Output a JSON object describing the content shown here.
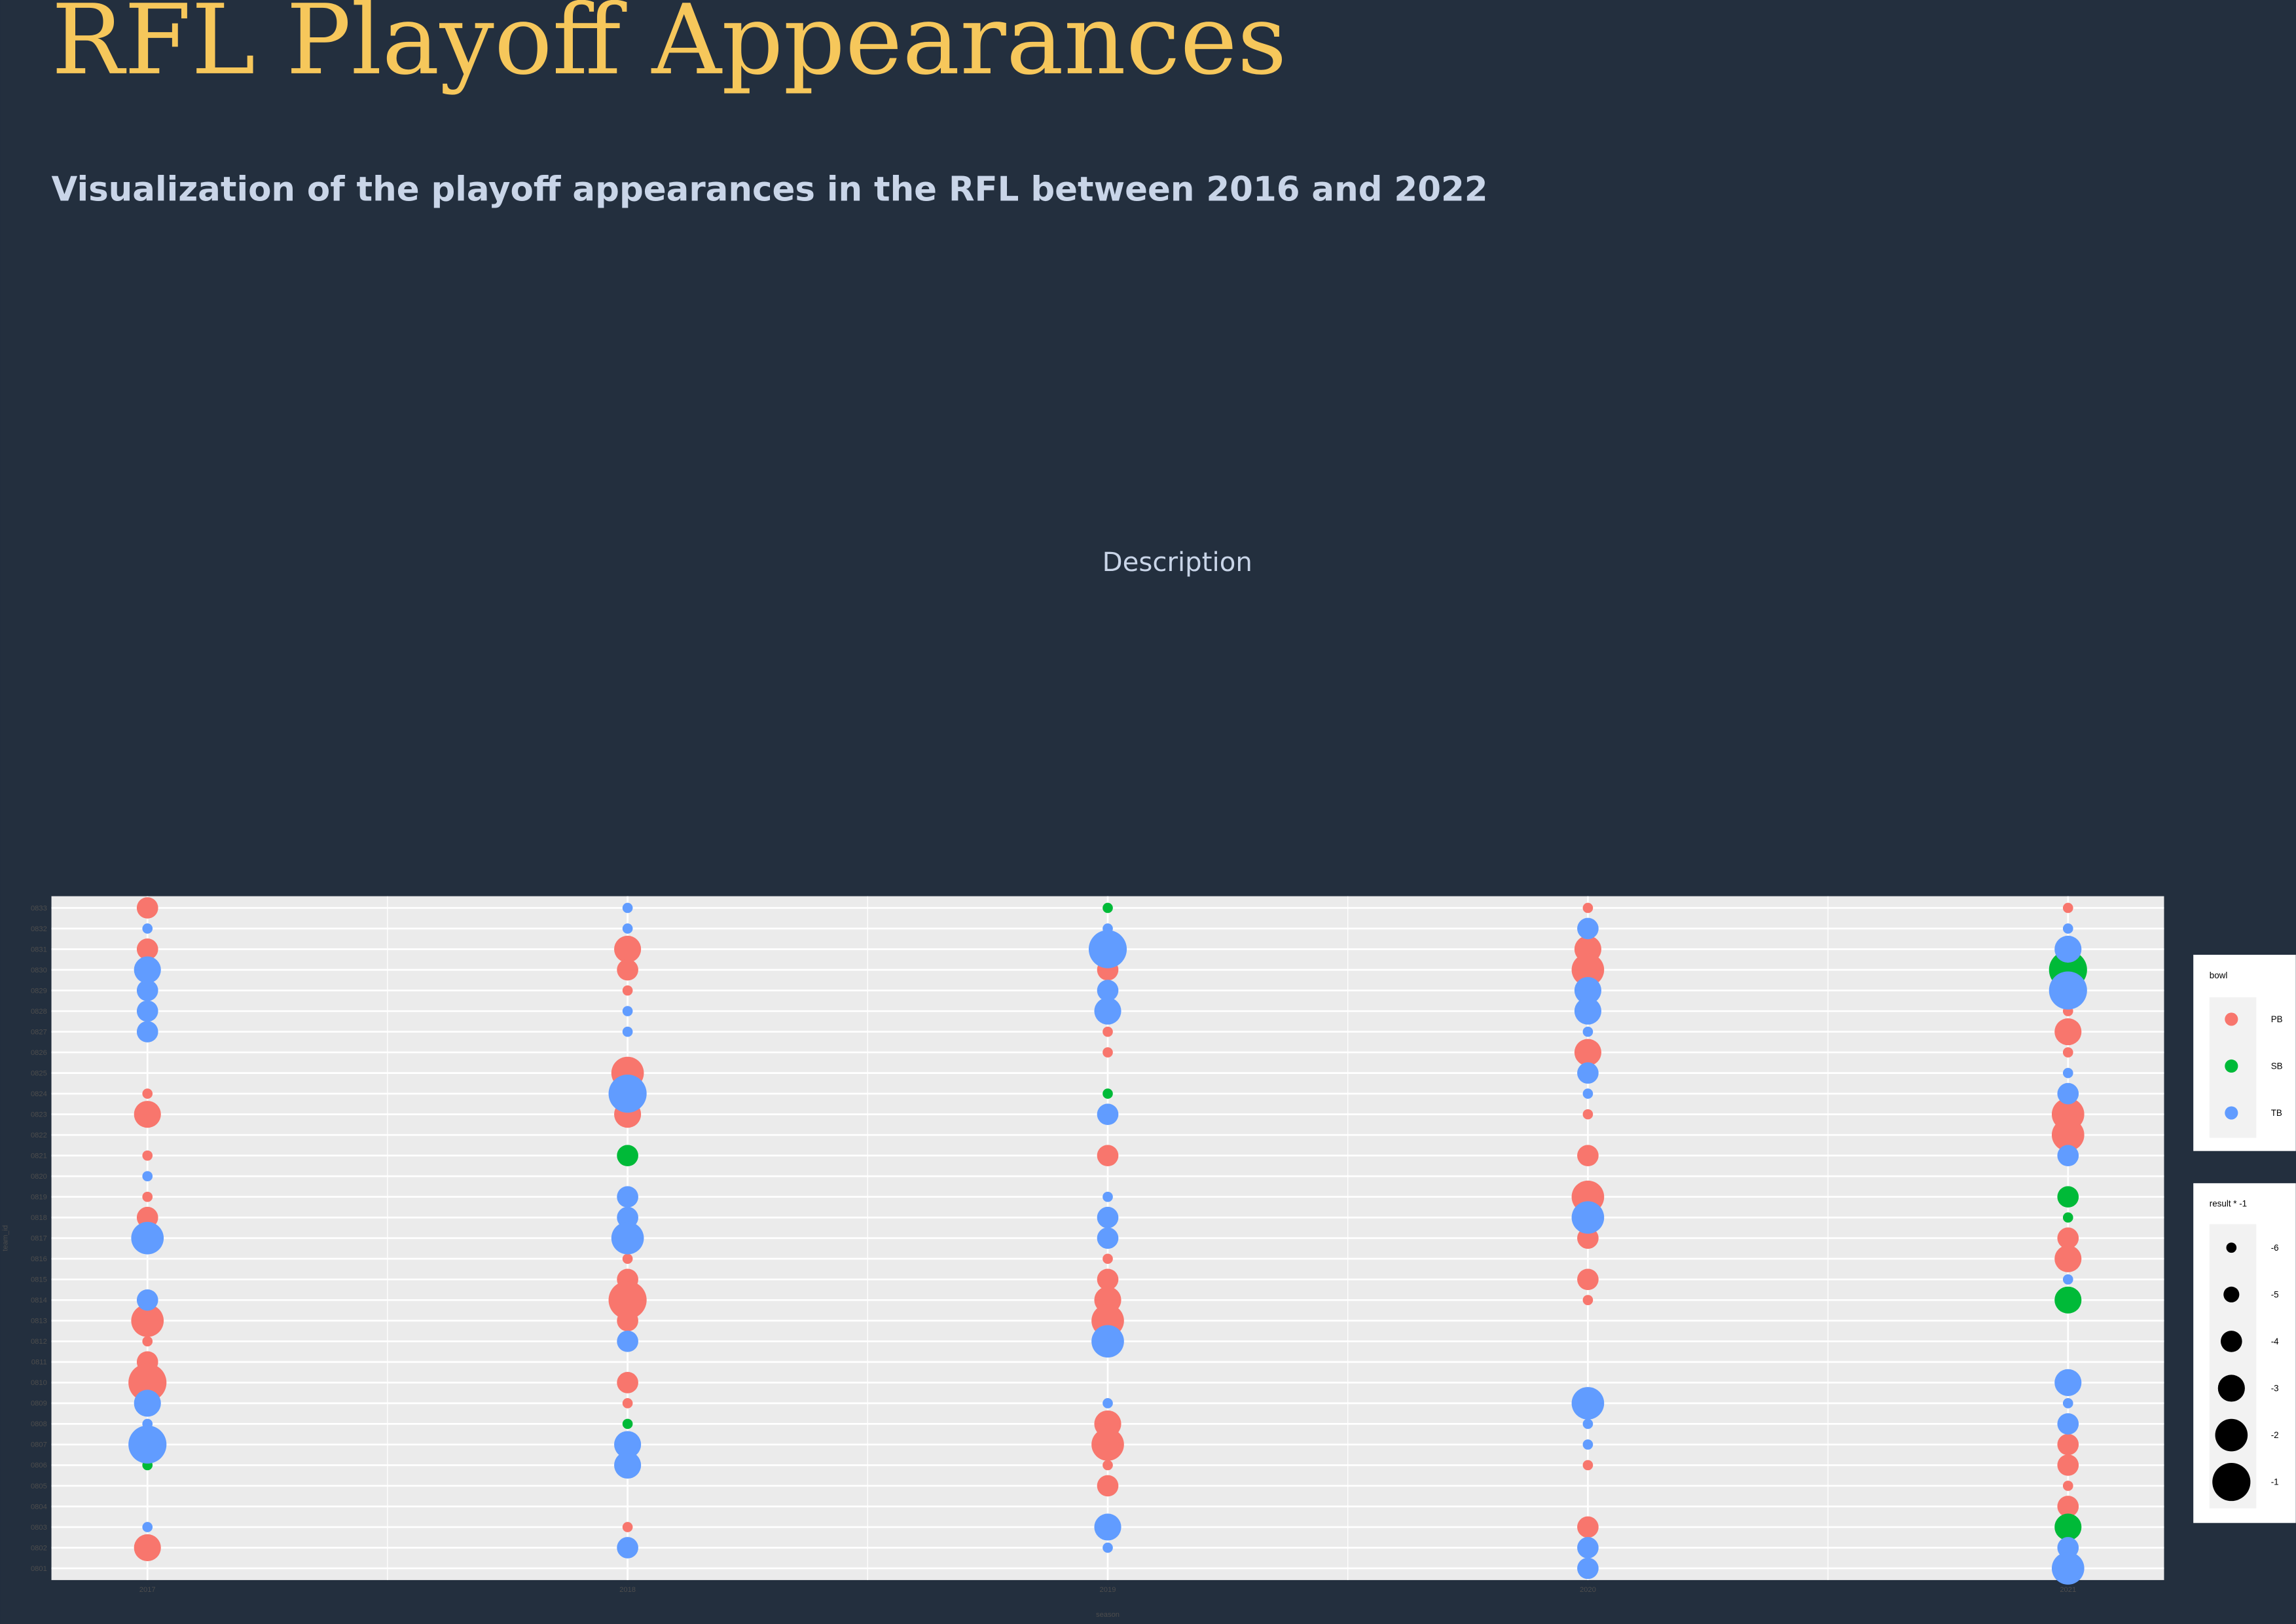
{
  "header": {
    "title": "RFL Playoff Appearances",
    "subtitle": "Visualization of the playoff appearances in the RFL between 2016 and 2022",
    "description": "Description"
  },
  "chart_data": {
    "type": "scatter",
    "x_label": "season",
    "y_label": "team_id",
    "xlim": [
      2016.8,
      2021.2
    ],
    "xticks": [
      2017,
      2018,
      2019,
      2020,
      2021
    ],
    "y_categories": [
      "0801",
      "0802",
      "0803",
      "0804",
      "0805",
      "0806",
      "0807",
      "0808",
      "0809",
      "0810",
      "0811",
      "0812",
      "0813",
      "0814",
      "0815",
      "0816",
      "0817",
      "0818",
      "0819",
      "0820",
      "0821",
      "0822",
      "0823",
      "0824",
      "0825",
      "0826",
      "0827",
      "0828",
      "0829",
      "0830",
      "0831",
      "0832",
      "0833"
    ],
    "grid": true,
    "legend_title": "bowl",
    "size_legend": {
      "title": "result * -1",
      "values": [
        -6,
        -5,
        -4,
        -3,
        -2,
        -1
      ]
    },
    "series": [
      {
        "name": "PB",
        "color": "#F8766D",
        "x": [
          2017,
          2017,
          2017,
          2017,
          2017,
          2017,
          2017,
          2017,
          2017,
          2017,
          2017,
          2017,
          2018,
          2018,
          2018,
          2018,
          2018,
          2018,
          2018,
          2018,
          2018,
          2018,
          2018,
          2018,
          2019,
          2019,
          2019,
          2019,
          2019,
          2019,
          2019,
          2019,
          2019,
          2019,
          2019,
          2019,
          2020,
          2020,
          2020,
          2020,
          2020,
          2020,
          2020,
          2020,
          2020,
          2020,
          2020,
          2020,
          2021,
          2021,
          2021,
          2021,
          2021,
          2021,
          2021,
          2021,
          2021,
          2021,
          2021,
          2021
        ],
        "y": [
          "0833",
          "0831",
          "0824",
          "0823",
          "0821",
          "0819",
          "0818",
          "0813",
          "0812",
          "0811",
          "0810",
          "0802",
          "0831",
          "0830",
          "0829",
          "0825",
          "0823",
          "0816",
          "0815",
          "0814",
          "0813",
          "0810",
          "0809",
          "0803",
          "0830",
          "0827",
          "0826",
          "0821",
          "0816",
          "0815",
          "0814",
          "0813",
          "0808",
          "0807",
          "0806",
          "0805",
          "0833",
          "0831",
          "0830",
          "0826",
          "0823",
          "0821",
          "0819",
          "0817",
          "0815",
          "0814",
          "0806",
          "0803",
          "0833",
          "0828",
          "0827",
          "0826",
          "0823",
          "0822",
          "0817",
          "0816",
          "0807",
          "0806",
          "0805",
          "0804"
        ],
        "size": [
          -4,
          -4,
          -6,
          -3,
          -6,
          -6,
          -4,
          -2,
          -6,
          -4,
          -1,
          -3,
          -3,
          -4,
          -6,
          -2,
          -3,
          -6,
          -4,
          -1,
          -4,
          -4,
          -6,
          -6,
          -4,
          -6,
          -6,
          -4,
          -6,
          -4,
          -3,
          -2,
          -3,
          -2,
          -6,
          -4,
          -6,
          -3,
          -2,
          -3,
          -6,
          -4,
          -2,
          -4,
          -4,
          -6,
          -6,
          -4,
          -6,
          -6,
          -3,
          -6,
          -2,
          -2,
          -4,
          -3,
          -4,
          -4,
          -6,
          -4
        ]
      },
      {
        "name": "SB",
        "color": "#00BA38",
        "x": [
          2017,
          2018,
          2018,
          2019,
          2019,
          2021,
          2021,
          2021,
          2021,
          2021
        ],
        "y": [
          "0806",
          "0821",
          "0808",
          "0833",
          "0824",
          "0830",
          "0819",
          "0818",
          "0814",
          "0803"
        ],
        "size": [
          -6,
          -4,
          -6,
          -6,
          -6,
          -1,
          -4,
          -6,
          -3,
          -3
        ]
      },
      {
        "name": "TB",
        "color": "#619CFF",
        "x": [
          2017,
          2017,
          2017,
          2017,
          2017,
          2017,
          2017,
          2017,
          2017,
          2017,
          2017,
          2017,
          2018,
          2018,
          2018,
          2018,
          2018,
          2018,
          2018,
          2018,
          2018,
          2018,
          2018,
          2018,
          2019,
          2019,
          2019,
          2019,
          2019,
          2019,
          2019,
          2019,
          2019,
          2019,
          2019,
          2019,
          2020,
          2020,
          2020,
          2020,
          2020,
          2020,
          2020,
          2020,
          2020,
          2020,
          2020,
          2020,
          2021,
          2021,
          2021,
          2021,
          2021,
          2021,
          2021,
          2021,
          2021,
          2021,
          2021,
          2021
        ],
        "y": [
          "0832",
          "0830",
          "0829",
          "0828",
          "0827",
          "0820",
          "0817",
          "0814",
          "0809",
          "0808",
          "0807",
          "0803",
          "0833",
          "0832",
          "0828",
          "0827",
          "0824",
          "0819",
          "0818",
          "0817",
          "0812",
          "0807",
          "0806",
          "0802",
          "0832",
          "0831",
          "0829",
          "0828",
          "0823",
          "0819",
          "0818",
          "0817",
          "0812",
          "0809",
          "0803",
          "0802",
          "0832",
          "0829",
          "0828",
          "0827",
          "0825",
          "0824",
          "0818",
          "0809",
          "0808",
          "0807",
          "0802",
          "0801",
          "0832",
          "0831",
          "0829",
          "0825",
          "0824",
          "0821",
          "0815",
          "0810",
          "0809",
          "0808",
          "0802",
          "0801"
        ],
        "size": [
          -6,
          -3,
          -4,
          -4,
          -4,
          -6,
          -2,
          -4,
          -3,
          -6,
          -1,
          -6,
          -6,
          -6,
          -6,
          -6,
          -1,
          -4,
          -4,
          -2,
          -4,
          -3,
          -3,
          -4,
          -6,
          -1,
          -4,
          -3,
          -4,
          -6,
          -4,
          -4,
          -2,
          -6,
          -3,
          -6,
          -4,
          -3,
          -3,
          -6,
          -4,
          -6,
          -2,
          -2,
          -6,
          -6,
          -4,
          -4,
          -6,
          -3,
          -1,
          -6,
          -4,
          -4,
          -6,
          -3,
          -6,
          -4,
          -4,
          -2
        ]
      }
    ]
  }
}
